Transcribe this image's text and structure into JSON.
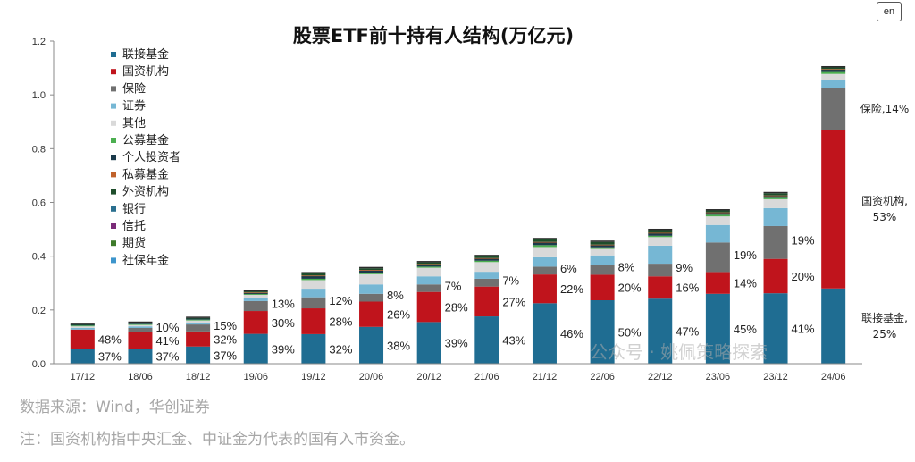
{
  "chart_data": {
    "type": "bar",
    "stacked": true,
    "title": "股票ETF前十持有人结构(万亿元)",
    "categories": [
      "17/12",
      "18/06",
      "18/12",
      "19/06",
      "19/12",
      "20/06",
      "20/12",
      "21/06",
      "21/12",
      "22/06",
      "22/12",
      "23/06",
      "23/12",
      "24/06"
    ],
    "ylim": [
      0,
      1.2
    ],
    "yticks": [
      "0.0",
      "0.2",
      "0.4",
      "0.6",
      "0.8",
      "1.0",
      "1.2"
    ],
    "grid": false,
    "legend_position": "top-left",
    "series": [
      {
        "name": "联接基金",
        "color": "#1f6d92",
        "values": [
          0.055,
          0.056,
          0.064,
          0.111,
          0.11,
          0.137,
          0.155,
          0.176,
          0.225,
          0.236,
          0.242,
          0.26,
          0.262,
          0.28
        ]
      },
      {
        "name": "国资机构",
        "color": "#c0141c",
        "values": [
          0.072,
          0.062,
          0.056,
          0.085,
          0.096,
          0.094,
          0.112,
          0.111,
          0.107,
          0.095,
          0.083,
          0.081,
          0.128,
          0.59
        ]
      },
      {
        "name": "保险",
        "color": "#707070",
        "values": [
          0.0,
          0.015,
          0.026,
          0.037,
          0.041,
          0.029,
          0.028,
          0.029,
          0.029,
          0.038,
          0.047,
          0.11,
          0.122,
          0.156
        ]
      },
      {
        "name": "证券",
        "color": "#76b7d4",
        "values": [
          0.006,
          0.006,
          0.007,
          0.011,
          0.032,
          0.035,
          0.03,
          0.026,
          0.035,
          0.034,
          0.067,
          0.065,
          0.067,
          0.03
        ]
      },
      {
        "name": "其他",
        "color": "#d9d9d9",
        "values": [
          0.006,
          0.006,
          0.008,
          0.012,
          0.032,
          0.038,
          0.032,
          0.036,
          0.038,
          0.024,
          0.032,
          0.032,
          0.033,
          0.022
        ]
      },
      {
        "name": "公募基金",
        "color": "#4caf50",
        "values": [
          0.003,
          0.002,
          0.003,
          0.003,
          0.005,
          0.004,
          0.004,
          0.005,
          0.007,
          0.006,
          0.005,
          0.006,
          0.005,
          0.007
        ]
      },
      {
        "name": "个人投资者",
        "color": "#1b3a4b",
        "values": [
          0.004,
          0.004,
          0.004,
          0.005,
          0.01,
          0.01,
          0.009,
          0.009,
          0.01,
          0.009,
          0.01,
          0.008,
          0.008,
          0.01
        ]
      },
      {
        "name": "私募基金",
        "color": "#c0622b",
        "values": [
          0.0,
          0.0,
          0.0,
          0.001,
          0.002,
          0.002,
          0.001,
          0.001,
          0.002,
          0.001,
          0.001,
          0.001,
          0.001,
          0.001
        ]
      },
      {
        "name": "外资机构",
        "color": "#1e4d2b",
        "values": [
          0.001,
          0.001,
          0.002,
          0.004,
          0.008,
          0.006,
          0.006,
          0.007,
          0.01,
          0.01,
          0.01,
          0.007,
          0.008,
          0.006
        ]
      },
      {
        "name": "银行",
        "color": "#2a6f8f",
        "values": [
          0.0,
          0.0,
          0.0,
          0.0,
          0.0,
          0.0,
          0.0,
          0.0,
          0.0,
          0.0,
          0.0,
          0.0,
          0.0,
          0.0
        ]
      },
      {
        "name": "信托",
        "color": "#7a2a78",
        "values": [
          0.0,
          0.0,
          0.0,
          0.0,
          0.0,
          0.0,
          0.0,
          0.0,
          0.0,
          0.0,
          0.0,
          0.0,
          0.0,
          0.0
        ]
      },
      {
        "name": "期货",
        "color": "#3d7a2a",
        "values": [
          0.0,
          0.0,
          0.0,
          0.0,
          0.0,
          0.0,
          0.0,
          0.0,
          0.0,
          0.0,
          0.0,
          0.0,
          0.0,
          0.0
        ]
      },
      {
        "name": "社保年金",
        "color": "#3d95cc",
        "values": [
          0.0,
          0.0,
          0.0,
          0.0,
          0.0,
          0.0,
          0.0,
          0.0,
          0.0,
          0.0,
          0.0,
          0.0,
          0.0,
          0.0
        ]
      }
    ],
    "annotations": [
      {
        "category": "17/12",
        "series": "联接基金",
        "text": "37%"
      },
      {
        "category": "17/12",
        "series": "国资机构",
        "text": "48%"
      },
      {
        "category": "18/06",
        "series": "联接基金",
        "text": "37%"
      },
      {
        "category": "18/06",
        "series": "国资机构",
        "text": "41%"
      },
      {
        "category": "18/06",
        "series": "保险",
        "text": "10%"
      },
      {
        "category": "18/12",
        "series": "联接基金",
        "text": "37%"
      },
      {
        "category": "18/12",
        "series": "国资机构",
        "text": "32%"
      },
      {
        "category": "18/12",
        "series": "保险",
        "text": "15%"
      },
      {
        "category": "19/06",
        "series": "联接基金",
        "text": "39%"
      },
      {
        "category": "19/06",
        "series": "国资机构",
        "text": "30%"
      },
      {
        "category": "19/06",
        "series": "保险",
        "text": "13%"
      },
      {
        "category": "19/12",
        "series": "联接基金",
        "text": "32%"
      },
      {
        "category": "19/12",
        "series": "国资机构",
        "text": "28%"
      },
      {
        "category": "19/12",
        "series": "保险",
        "text": "12%"
      },
      {
        "category": "20/06",
        "series": "联接基金",
        "text": "38%"
      },
      {
        "category": "20/06",
        "series": "国资机构",
        "text": "26%"
      },
      {
        "category": "20/06",
        "series": "保险",
        "text": "8%"
      },
      {
        "category": "20/12",
        "series": "联接基金",
        "text": "39%"
      },
      {
        "category": "20/12",
        "series": "国资机构",
        "text": "28%"
      },
      {
        "category": "20/12",
        "series": "保险",
        "text": "7%"
      },
      {
        "category": "21/06",
        "series": "联接基金",
        "text": "43%"
      },
      {
        "category": "21/06",
        "series": "国资机构",
        "text": "27%"
      },
      {
        "category": "21/06",
        "series": "保险",
        "text": "7%"
      },
      {
        "category": "21/12",
        "series": "联接基金",
        "text": "46%"
      },
      {
        "category": "21/12",
        "series": "国资机构",
        "text": "22%"
      },
      {
        "category": "21/12",
        "series": "保险",
        "text": "6%"
      },
      {
        "category": "22/06",
        "series": "联接基金",
        "text": "50%"
      },
      {
        "category": "22/06",
        "series": "国资机构",
        "text": "20%"
      },
      {
        "category": "22/06",
        "series": "保险",
        "text": "8%"
      },
      {
        "category": "22/12",
        "series": "联接基金",
        "text": "47%"
      },
      {
        "category": "22/12",
        "series": "国资机构",
        "text": "16%"
      },
      {
        "category": "22/12",
        "series": "保险",
        "text": "9%"
      },
      {
        "category": "23/06",
        "series": "联接基金",
        "text": "45%"
      },
      {
        "category": "23/06",
        "series": "国资机构",
        "text": "14%"
      },
      {
        "category": "23/06",
        "series": "保险",
        "text": "19%"
      },
      {
        "category": "23/12",
        "series": "联接基金",
        "text": "41%"
      },
      {
        "category": "23/12",
        "series": "国资机构",
        "text": "20%"
      },
      {
        "category": "23/12",
        "series": "保险",
        "text": "19%"
      }
    ],
    "side_labels": [
      {
        "series": "保险",
        "lines": [
          "保险,14%"
        ]
      },
      {
        "series": "国资机构",
        "lines": [
          "国资机构,",
          "53%"
        ]
      },
      {
        "series": "联接基金",
        "lines": [
          "联接基金,",
          "25%"
        ]
      }
    ]
  },
  "footer": {
    "source": "数据来源：Wind，华创证券",
    "note": "注：国资机构指中央汇金、中证金为代表的国有入市资金。"
  },
  "watermark": "公众号 · 姚佩策略探索",
  "corner_badge": "en"
}
